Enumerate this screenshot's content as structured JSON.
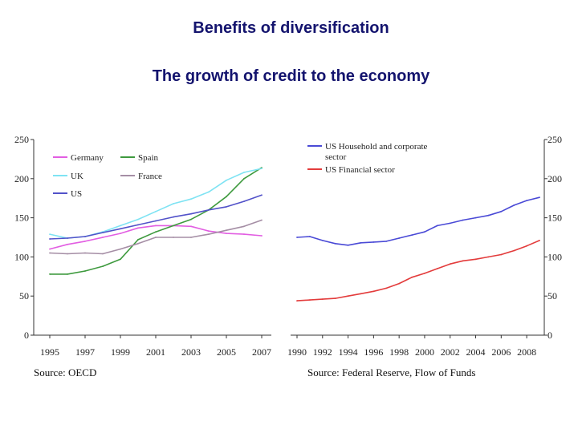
{
  "slide": {
    "title": "Benefits of diversification",
    "subtitle": "The growth of credit to the economy"
  },
  "chart_data": [
    {
      "type": "line",
      "source": "Source: OECD",
      "ylim": [
        0,
        250
      ],
      "yticks": [
        0,
        50,
        100,
        150,
        200,
        250
      ],
      "xlim": [
        1995,
        2007
      ],
      "xticks": [
        1995,
        1997,
        1999,
        2001,
        2003,
        2005,
        2007
      ],
      "legend_position": "top-left",
      "series": [
        {
          "name": "Germany",
          "color": "#e25ee2",
          "x": [
            1995,
            1996,
            1997,
            1998,
            1999,
            2000,
            2001,
            2002,
            2003,
            2004,
            2005,
            2006,
            2007
          ],
          "y": [
            110,
            116,
            120,
            125,
            130,
            137,
            140,
            140,
            139,
            133,
            130,
            129,
            127
          ]
        },
        {
          "name": "Spain",
          "color": "#3e9a3e",
          "x": [
            1995,
            1996,
            1997,
            1998,
            1999,
            2000,
            2001,
            2002,
            2003,
            2004,
            2005,
            2006,
            2007
          ],
          "y": [
            78,
            78,
            82,
            88,
            97,
            122,
            132,
            140,
            148,
            160,
            177,
            200,
            214
          ]
        },
        {
          "name": "UK",
          "color": "#7fe3f3",
          "x": [
            1995,
            1996,
            1997,
            1998,
            1999,
            2000,
            2001,
            2002,
            2003,
            2004,
            2005,
            2006,
            2007
          ],
          "y": [
            129,
            124,
            126,
            132,
            140,
            148,
            158,
            168,
            174,
            183,
            198,
            208,
            213
          ]
        },
        {
          "name": "France",
          "color": "#a58ea5",
          "x": [
            1995,
            1996,
            1997,
            1998,
            1999,
            2000,
            2001,
            2002,
            2003,
            2004,
            2005,
            2006,
            2007
          ],
          "y": [
            105,
            104,
            105,
            104,
            110,
            117,
            125,
            125,
            125,
            129,
            134,
            139,
            147
          ]
        },
        {
          "name": "US",
          "color": "#5252c9",
          "x": [
            1995,
            1996,
            1997,
            1998,
            1999,
            2000,
            2001,
            2002,
            2003,
            2004,
            2005,
            2006,
            2007
          ],
          "y": [
            123,
            124,
            126,
            131,
            136,
            141,
            146,
            151,
            155,
            160,
            164,
            171,
            179
          ]
        }
      ]
    },
    {
      "type": "line",
      "source": "Source: Federal Reserve, Flow of Funds",
      "ylim": [
        0,
        250
      ],
      "yticks": [
        0,
        50,
        100,
        150,
        200,
        250
      ],
      "xlim": [
        1990,
        2009
      ],
      "xticks": [
        1990,
        1992,
        1994,
        1996,
        1998,
        2000,
        2002,
        2004,
        2006,
        2008
      ],
      "y_axis_side": "right",
      "legend_position": "top-left",
      "series": [
        {
          "name": "US Household and corporate sector",
          "legend_lines": [
            "US Household and corporate",
            "sector"
          ],
          "color": "#4a4ad6",
          "x": [
            1990,
            1991,
            1992,
            1993,
            1994,
            1995,
            1996,
            1997,
            1998,
            1999,
            2000,
            2001,
            2002,
            2003,
            2004,
            2005,
            2006,
            2007,
            2008,
            2009
          ],
          "y": [
            125,
            126,
            121,
            117,
            115,
            118,
            119,
            120,
            124,
            128,
            132,
            140,
            143,
            147,
            150,
            153,
            158,
            166,
            172,
            176
          ]
        },
        {
          "name": "US Financial sector",
          "legend_lines": [
            "US Financial sector"
          ],
          "color": "#e33c3c",
          "x": [
            1990,
            1991,
            1992,
            1993,
            1994,
            1995,
            1996,
            1997,
            1998,
            1999,
            2000,
            2001,
            2002,
            2003,
            2004,
            2005,
            2006,
            2007,
            2008,
            2009
          ],
          "y": [
            44,
            45,
            46,
            47,
            50,
            53,
            56,
            60,
            66,
            74,
            79,
            85,
            91,
            95,
            97,
            100,
            103,
            108,
            114,
            121
          ]
        }
      ]
    }
  ]
}
